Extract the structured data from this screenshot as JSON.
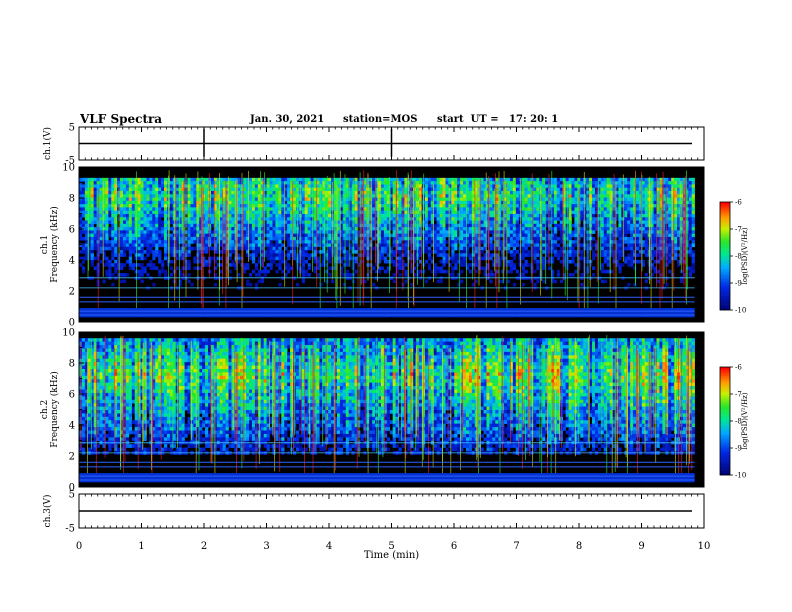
{
  "header": {
    "title": "VLF Spectra",
    "date": "Jan. 30, 2021",
    "station": "station=MOS",
    "start": "start  UT =   17: 20: 1"
  },
  "chart_data": {
    "type": "heatmap",
    "title": "VLF Spectra",
    "xlabel": "Time (min)",
    "xlim": [
      0,
      10
    ],
    "x_ticks": [
      "0",
      "1",
      "2",
      "3",
      "4",
      "5",
      "6",
      "7",
      "8",
      "9",
      "10"
    ],
    "panels": [
      {
        "name": "waveform-ch1",
        "ylabel": "ch.1(V)",
        "ylim": [
          -5,
          5
        ],
        "y_ticks": [
          "5",
          "-5"
        ],
        "level": 0
      },
      {
        "name": "spectrogram-ch1",
        "ylabel": [
          "ch.1",
          "Frequency (kHz)"
        ],
        "ylim": [
          0,
          10
        ],
        "y_ticks": [
          "0",
          "2",
          "4",
          "6",
          "8",
          "10"
        ],
        "colorbar": {
          "label": "log(PSD)(V²/Hz)",
          "range": [
            -10,
            -6
          ],
          "ticks": [
            "-6",
            "-7",
            "-8",
            "-9",
            "-10"
          ]
        }
      },
      {
        "name": "spectrogram-ch2",
        "ylabel": [
          "ch.2",
          "Frequency (kHz)"
        ],
        "ylim": [
          0,
          10
        ],
        "y_ticks": [
          "0",
          "2",
          "4",
          "6",
          "8",
          "10"
        ],
        "colorbar": {
          "label": "log(PSD)(V²/Hz)",
          "range": [
            -10,
            -6
          ],
          "ticks": [
            "-6",
            "-7",
            "-8",
            "-9",
            "-10"
          ]
        }
      },
      {
        "name": "waveform-ch3",
        "ylabel": "ch.3(V)",
        "ylim": [
          -5,
          5
        ],
        "y_ticks": [
          "5",
          "-5"
        ],
        "level": 0
      }
    ],
    "colors": {
      "low": "#000080",
      "mid": "#00ff00",
      "high": "#ff0000",
      "background": "#000000"
    }
  }
}
